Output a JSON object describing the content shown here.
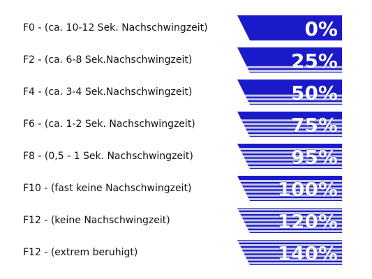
{
  "rows": [
    {
      "label": "F0 - (ca. 10-12 Sek. Nachschwingzeit)",
      "percent": "0%",
      "level": 0
    },
    {
      "label": "F2 - (ca. 6-8 Sek.Nachschwingzeit)",
      "percent": "25%",
      "level": 0.25
    },
    {
      "label": "F4 - (ca. 3-4 Sek.Nachschwingzeit)",
      "percent": "50%",
      "level": 0.5
    },
    {
      "label": "F6 - (ca. 1-2 Sek. Nachschwingzeit)",
      "percent": "75%",
      "level": 0.75
    },
    {
      "label": "F8 - (0,5 - 1 Sek. Nachschwingzeit)",
      "percent": "95%",
      "level": 0.95
    },
    {
      "label": "F10 - (fast keine Nachschwingzeit)",
      "percent": "100%",
      "level": 1.0
    },
    {
      "label": "F12 - (keine Nachschwingzeit)",
      "percent": "120%",
      "level": 1.2
    },
    {
      "label": "F12 - (extrem beruhigt)",
      "percent": "140%",
      "level": 1.4
    }
  ],
  "colors": {
    "badge": "#1a1acb",
    "stripe": "#c8c8e4",
    "text": "#ffffff"
  }
}
